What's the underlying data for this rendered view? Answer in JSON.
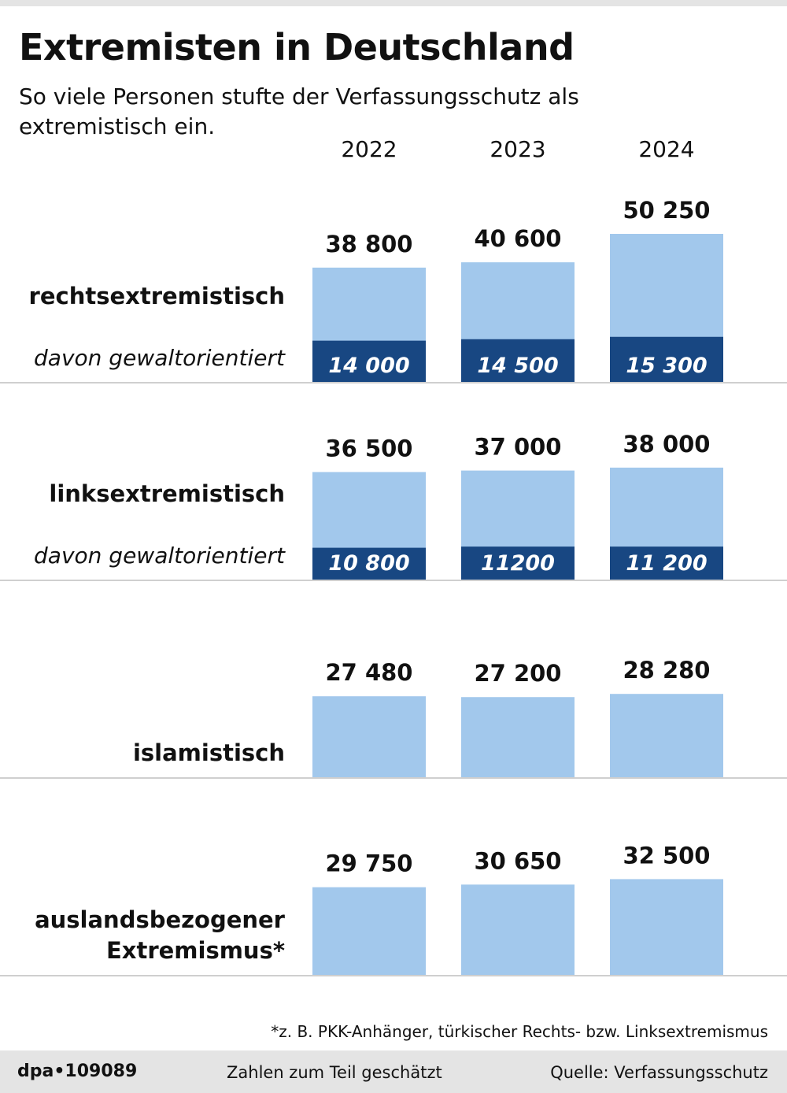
{
  "header": {
    "title": "Extremisten in Deutschland",
    "subtitle": "So viele Personen stufte der Verfassungsschutz als extremistisch ein."
  },
  "colors": {
    "total_bar": "#a2c8ec",
    "violent_bar": "#184782",
    "divider": "#cfcfcf",
    "footer_bg": "#e4e4e4"
  },
  "chart_data": {
    "type": "bar",
    "categories": [
      "2022",
      "2023",
      "2024"
    ],
    "groups": [
      {
        "label": [
          "rechtsextremistisch"
        ],
        "sublabel": "davon gewaltorientiert",
        "values": [
          38800,
          40600,
          50250
        ],
        "value_labels": [
          "38 800",
          "40 600",
          "50 250"
        ],
        "violent": [
          14000,
          14500,
          15300
        ],
        "violent_labels": [
          "14 000",
          "14 500",
          "15 300"
        ]
      },
      {
        "label": [
          "linksextremistisch"
        ],
        "sublabel": "davon gewaltorientiert",
        "values": [
          36500,
          37000,
          38000
        ],
        "value_labels": [
          "36 500",
          "37 000",
          "38 000"
        ],
        "violent": [
          10800,
          11200,
          11200
        ],
        "violent_labels": [
          "10 800",
          "11200",
          "11 200"
        ]
      },
      {
        "label": [
          "islamistisch"
        ],
        "values": [
          27480,
          27200,
          28280
        ],
        "value_labels": [
          "27 480",
          "27 200",
          "28 280"
        ]
      },
      {
        "label": [
          "auslandsbezogener",
          "Extremismus*"
        ],
        "values": [
          29750,
          30650,
          32500
        ],
        "value_labels": [
          "29 750",
          "30 650",
          "32 500"
        ]
      }
    ]
  },
  "footnote": "*z. B. PKK-Anhänger, türkischer Rechts- bzw. Linksextremismus",
  "footer": {
    "logo": "dpa•109089",
    "note": "Zahlen zum Teil geschätzt",
    "source": "Quelle: Verfassungsschutz"
  }
}
